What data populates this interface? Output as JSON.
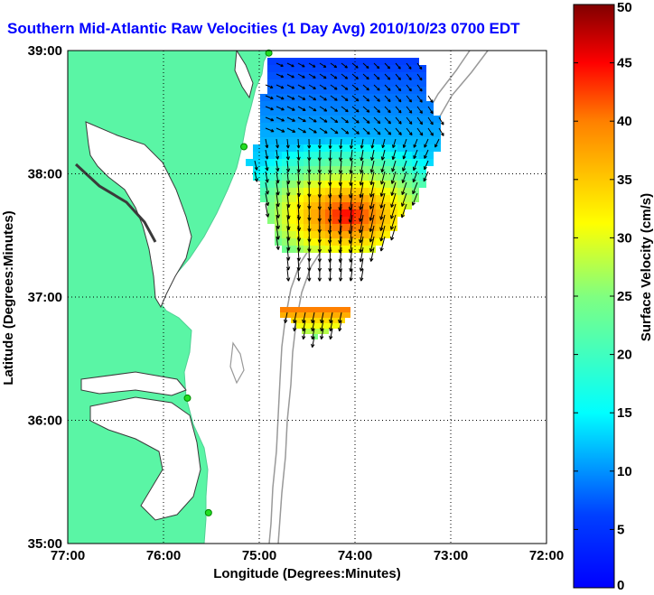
{
  "title": "Southern Mid-Atlantic Raw Velocities (1 Day Avg) 2010/10/23 0700 EDT",
  "map": {
    "xlabel": "Longitude (Degrees:Minutes)",
    "ylabel": "Latitude (Degrees:Minutes)",
    "x_ticks": [
      "77:00",
      "76:00",
      "75:00",
      "74:00",
      "73:00",
      "72:00"
    ],
    "y_ticks": [
      "39:00",
      "38:00",
      "37:00",
      "36:00",
      "35:00"
    ],
    "lon_range": [
      -77,
      -72
    ],
    "lat_range": [
      35,
      39
    ],
    "land_color": "#5af5a5",
    "grid": "dotted"
  },
  "colorbar": {
    "label": "Surface Velocity (cm/s)",
    "ticks": [
      "50",
      "45",
      "40",
      "35",
      "30",
      "25",
      "20",
      "15",
      "10",
      "5",
      "0"
    ],
    "range": [
      0,
      50
    ],
    "colormap": "jet"
  },
  "stations": [
    {
      "lon": -74.9,
      "lat": 38.98
    },
    {
      "lon": -75.16,
      "lat": 38.22
    },
    {
      "lon": -75.75,
      "lat": 36.18
    },
    {
      "lon": -75.53,
      "lat": 35.25
    }
  ]
}
